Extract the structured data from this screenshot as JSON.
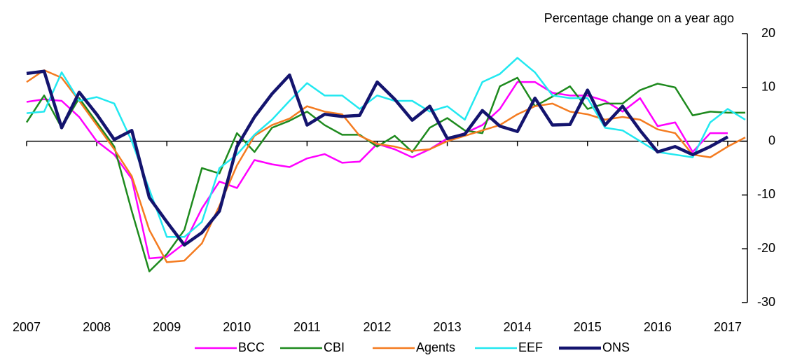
{
  "chart_data": {
    "type": "line",
    "y_label": "Percentage change on a year ago",
    "x": [
      2007,
      2007.25,
      2007.5,
      2007.75,
      2008,
      2008.25,
      2008.5,
      2008.75,
      2009,
      2009.25,
      2009.5,
      2009.75,
      2010,
      2010.25,
      2010.5,
      2010.75,
      2011,
      2011.25,
      2011.5,
      2011.75,
      2012,
      2012.25,
      2012.5,
      2012.75,
      2013,
      2013.25,
      2013.5,
      2013.75,
      2014,
      2014.25,
      2014.5,
      2014.75,
      2015,
      2015.25,
      2015.5,
      2015.75,
      2016,
      2016.25,
      2016.5,
      2016.75,
      2017,
      2017.25
    ],
    "series": [
      {
        "name": "BCC",
        "color": "#ff00ff",
        "width": 2.5,
        "values": [
          7.3,
          7.8,
          7.5,
          4.5,
          0,
          -2.5,
          -7,
          -21.8,
          -21.5,
          -19,
          -12.5,
          -7.5,
          -8.7,
          -3.5,
          -4.3,
          -4.8,
          -3.2,
          -2.4,
          -4,
          -3.8,
          -0.5,
          -1.5,
          -3,
          -1.5,
          0.5,
          1.5,
          3,
          6,
          11,
          11,
          9,
          8.5,
          8.5,
          7.5,
          5.5,
          8,
          2.8,
          3.5,
          -2,
          1.5,
          1.5,
          null
        ]
      },
      {
        "name": "CBI",
        "color": "#1e8a1e",
        "width": 2.5,
        "values": [
          3.5,
          8.5,
          2.5,
          8,
          3.5,
          -1,
          -13,
          -24.2,
          -21,
          -16.5,
          -5,
          -6,
          1.5,
          -2,
          2.5,
          3.8,
          5.5,
          3,
          1.2,
          1.2,
          -1,
          1,
          -2,
          2.5,
          4.3,
          2,
          1.5,
          10.2,
          11.8,
          6.5,
          8.3,
          10.2,
          6,
          7,
          7,
          9.5,
          10.7,
          10,
          4.8,
          5.5,
          5.3,
          5.3
        ]
      },
      {
        "name": "Agents",
        "color": "#f47b20",
        "width": 2.5,
        "values": [
          11,
          13.2,
          11.8,
          7.5,
          3,
          -1.5,
          -6.5,
          -16.5,
          -22.5,
          -22.2,
          -19,
          -12,
          -4.5,
          1,
          3,
          4.2,
          6.5,
          5.5,
          5,
          1,
          -0.5,
          -1,
          -1.8,
          -1.5,
          0,
          1,
          2,
          3,
          5,
          6.5,
          7,
          5.5,
          5,
          4,
          4.5,
          4,
          2.2,
          1.5,
          -2.5,
          -3,
          -1,
          0.7
        ]
      },
      {
        "name": "EEF",
        "color": "#22e8f0",
        "width": 2.5,
        "values": [
          5.2,
          5.5,
          12.8,
          7.5,
          8.2,
          7,
          0,
          -9,
          -17.8,
          -17.8,
          -15,
          -5,
          -2.5,
          1.2,
          4,
          7.5,
          10.8,
          8.5,
          8.5,
          6,
          8.5,
          7.5,
          7.5,
          5.5,
          6.5,
          4,
          11,
          12.5,
          15.5,
          12.8,
          8.5,
          8,
          8,
          2.5,
          2,
          0,
          -2,
          -2.5,
          -3,
          3.5,
          6,
          4
        ]
      },
      {
        "name": "ONS",
        "color": "#14146e",
        "width": 4.5,
        "values": [
          12.6,
          13,
          2.5,
          9.1,
          5,
          0.3,
          2,
          -10.5,
          -15,
          -19.3,
          -17,
          -13,
          -1,
          4.5,
          8.8,
          12.3,
          3,
          5,
          4.6,
          4.8,
          11,
          7.8,
          3.9,
          6.5,
          0.5,
          1.3,
          5.7,
          2.8,
          1.8,
          8,
          3,
          3.1,
          9.5,
          3,
          6.5,
          2,
          -2,
          -1,
          -2.5,
          -1,
          0.8,
          null
        ]
      }
    ],
    "xlim": [
      2007,
      2017.25
    ],
    "xticks": [
      2007,
      2008,
      2009,
      2010,
      2011,
      2012,
      2013,
      2014,
      2015,
      2016,
      2017
    ],
    "ylim": [
      -30,
      20
    ],
    "yticks": [
      -30,
      -20,
      -10,
      0,
      10,
      20
    ],
    "y_axis_side": "right",
    "legend": "bottom"
  }
}
